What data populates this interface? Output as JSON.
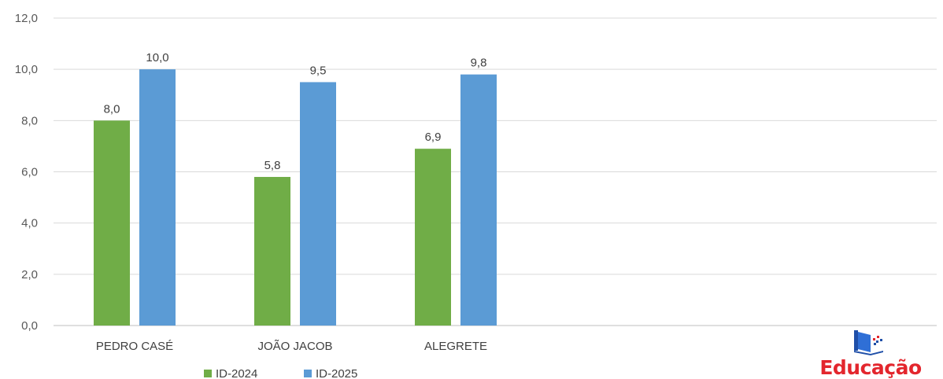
{
  "chart_data": {
    "type": "bar",
    "categories": [
      "PEDRO CASÉ",
      "JOÃO JACOB",
      "ALEGRETE"
    ],
    "series": [
      {
        "name": "ID-2024",
        "values": [
          8.0,
          5.8,
          6.9
        ],
        "labels": [
          "8,0",
          "5,8",
          "6,9"
        ],
        "color": "#70ad47"
      },
      {
        "name": "ID-2025",
        "values": [
          10.0,
          9.5,
          9.8
        ],
        "labels": [
          "10,0",
          "9,5",
          "9,8"
        ],
        "color": "#5b9bd5"
      }
    ],
    "ylim": [
      0,
      12
    ],
    "yticks": [
      0,
      2,
      4,
      6,
      8,
      10,
      12
    ],
    "ytick_labels": [
      "0,0",
      "2,0",
      "4,0",
      "6,0",
      "8,0",
      "10,0",
      "12,0"
    ],
    "grid": true,
    "legend_position": "bottom-left",
    "title": "",
    "xlabel": "",
    "ylabel": ""
  },
  "logo": {
    "text": "Educação",
    "color": "#e3262d",
    "icon": "book-icon"
  }
}
